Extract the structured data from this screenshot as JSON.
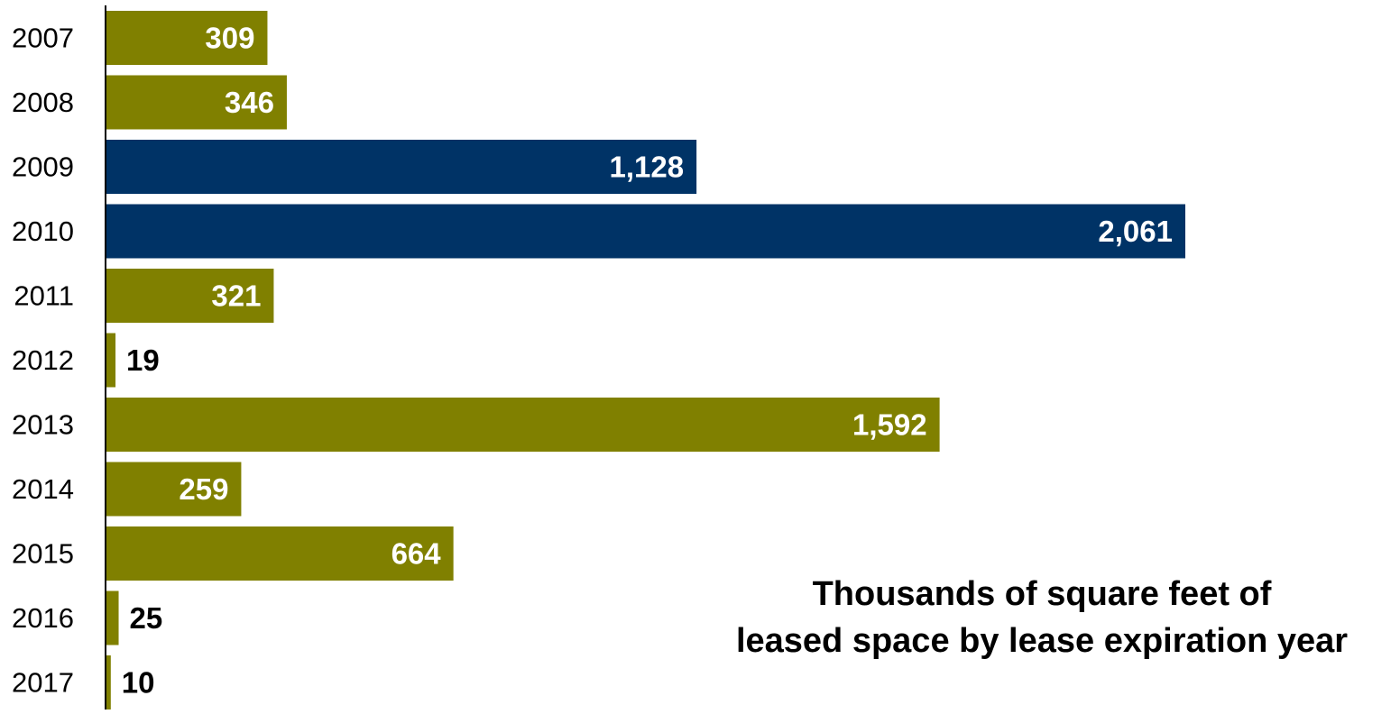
{
  "chart_data": {
    "type": "bar",
    "orientation": "horizontal",
    "title_lines": [
      "Thousands of square feet of",
      "leased space by lease expiration year"
    ],
    "categories": [
      "2007",
      "2008",
      "2009",
      "2010",
      "2011",
      "2012",
      "2013",
      "2014",
      "2015",
      "2016",
      "2017"
    ],
    "values": [
      309,
      346,
      1128,
      2061,
      321,
      19,
      1592,
      259,
      664,
      25,
      10
    ],
    "value_labels": [
      "309",
      "346",
      "1,128",
      "2,061",
      "321",
      "19",
      "1,592",
      "259",
      "664",
      "25",
      "10"
    ],
    "highlighted_categories": [
      "2009",
      "2010"
    ],
    "xlim": [
      0,
      2061
    ],
    "grid": false,
    "legend": "none",
    "colors": {
      "default_bar": "#808000",
      "highlight_bar": "#003366",
      "label_inside": "#ffffff",
      "label_outside": "#000000",
      "axis": "#000000"
    }
  }
}
